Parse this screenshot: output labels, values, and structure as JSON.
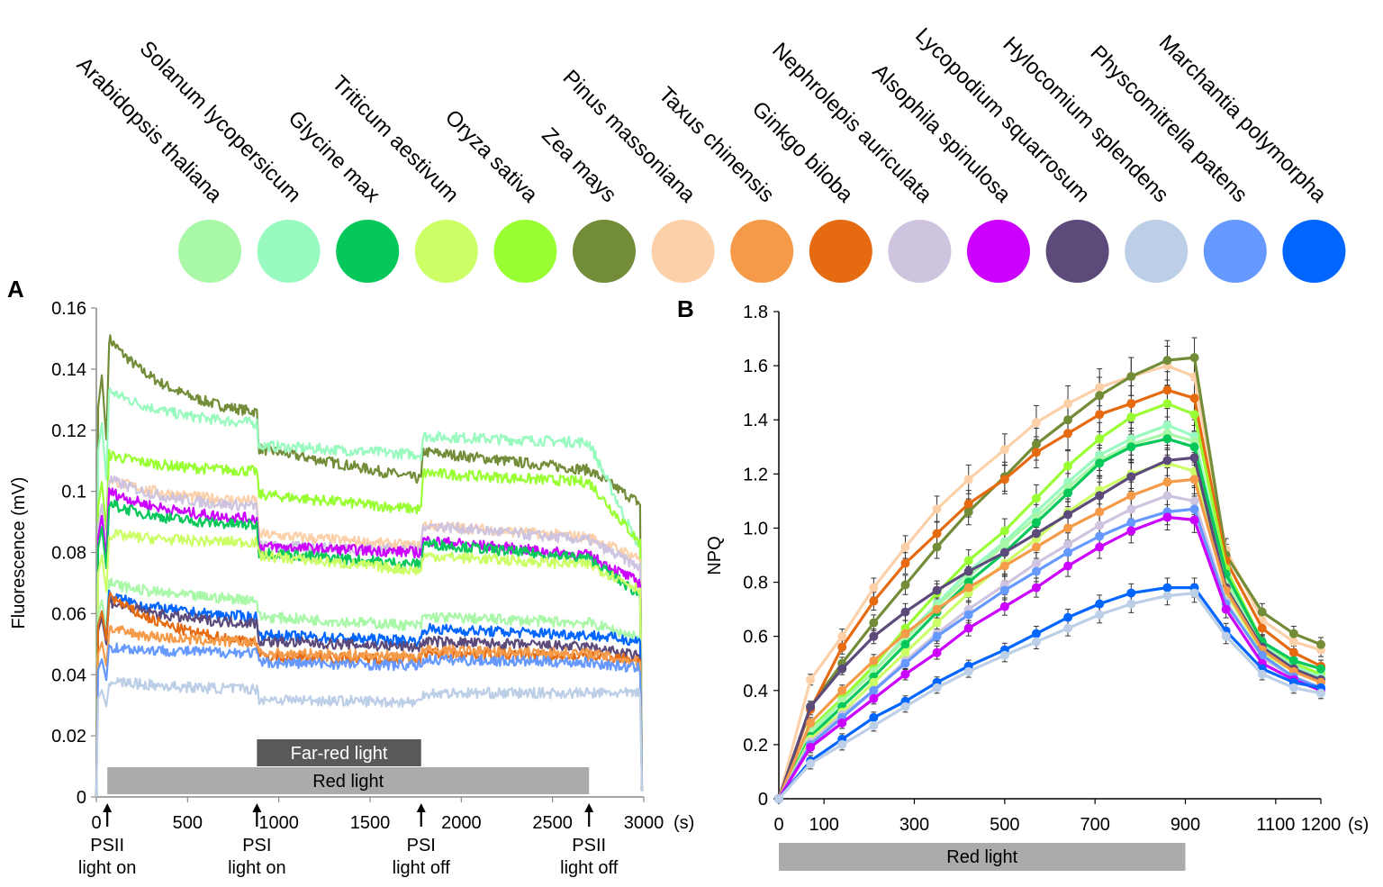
{
  "legend": {
    "species": [
      {
        "name": "Arabidopsis thaliana",
        "color": "#A8F8A8"
      },
      {
        "name": "Solanum lycopersicum",
        "color": "#98FABE"
      },
      {
        "name": "Glycine max",
        "color": "#06C759"
      },
      {
        "name": "Triticum aestivum",
        "color": "#CCFF66"
      },
      {
        "name": "Oryza sativa",
        "color": "#99FF33"
      },
      {
        "name": "Zea mays",
        "color": "#728C38"
      },
      {
        "name": "Pinus massoniana",
        "color": "#FCD0A8"
      },
      {
        "name": "Taxus chinensis",
        "color": "#F49A48"
      },
      {
        "name": "Ginkgo biloba",
        "color": "#E56A10"
      },
      {
        "name": "Nephrolepis auriculata",
        "color": "#CFC4DF"
      },
      {
        "name": "Alsophila spinulosa",
        "color": "#CC00FF"
      },
      {
        "name": "Lycopodium squarrosum",
        "color": "#5C4A7A"
      },
      {
        "name": "Hylocomium splendens",
        "color": "#BCCFE7"
      },
      {
        "name": "Physcomitrella patens",
        "color": "#6699FF"
      },
      {
        "name": "Marchantia polymorpha",
        "color": "#0066FF"
      }
    ]
  },
  "chart_data": [
    {
      "panel": "A",
      "type": "line",
      "ylabel": "Fluorescence (mV)",
      "xunit": "(s)",
      "ylim": [
        0,
        0.16
      ],
      "xlim": [
        0,
        3000
      ],
      "y_ticks": [
        "0",
        "0.02",
        "0.04",
        "0.06",
        "0.08",
        "0.1",
        "0.12",
        "0.14",
        "0.16"
      ],
      "y_tick_values": [
        0,
        0.02,
        0.04,
        0.06,
        0.08,
        0.1,
        0.12,
        0.14,
        0.16
      ],
      "x_ticks": [
        "0",
        "500",
        "1000",
        "1500",
        "2000",
        "2500",
        "3000"
      ],
      "x_tick_values": [
        0,
        500,
        1000,
        1500,
        2000,
        2500,
        3000
      ],
      "events": [
        {
          "t": 60,
          "label1": "PSII",
          "label2": "light on"
        },
        {
          "t": 880,
          "label1": "PSI",
          "label2": "light on"
        },
        {
          "t": 1780,
          "label1": "PSI",
          "label2": "light off"
        },
        {
          "t": 2700,
          "label1": "PSII",
          "label2": "light off"
        }
      ],
      "bars": [
        {
          "label": "Far-red light",
          "start": 880,
          "end": 1780,
          "row": 1,
          "color": "#595959",
          "text_color": "#ffffff"
        },
        {
          "label": "Red light",
          "start": 60,
          "end": 2700,
          "row": 2,
          "color": "#ABABAB",
          "text_color": "#000000"
        }
      ],
      "series": [
        {
          "name": "Zea mays",
          "peak": 0.15,
          "values": [
            0.15,
            0.123,
            0.114,
            0.104,
            0.113,
            0.107,
            0.096
          ]
        },
        {
          "name": "Solanum lycopersicum",
          "peak": 0.133,
          "values": [
            0.133,
            0.121,
            0.115,
            0.112,
            0.118,
            0.116,
            0.081
          ]
        },
        {
          "name": "Oryza sativa",
          "peak": 0.112,
          "values": [
            0.112,
            0.106,
            0.099,
            0.094,
            0.106,
            0.103,
            0.083
          ]
        },
        {
          "name": "Pinus massoniana",
          "peak": 0.104,
          "values": [
            0.104,
            0.096,
            0.086,
            0.082,
            0.089,
            0.085,
            0.078
          ]
        },
        {
          "name": "Nephrolepis auriculata",
          "peak": 0.104,
          "values": [
            0.104,
            0.094,
            0.082,
            0.081,
            0.089,
            0.084,
            0.075
          ]
        },
        {
          "name": "Alsophila spinulosa",
          "peak": 0.1,
          "values": [
            0.1,
            0.09,
            0.082,
            0.08,
            0.084,
            0.079,
            0.07
          ]
        },
        {
          "name": "Glycine max",
          "peak": 0.096,
          "values": [
            0.096,
            0.088,
            0.08,
            0.076,
            0.083,
            0.078,
            0.066
          ]
        },
        {
          "name": "Triticum aestivum",
          "peak": 0.086,
          "values": [
            0.086,
            0.083,
            0.079,
            0.074,
            0.079,
            0.076,
            0.068
          ]
        },
        {
          "name": "Arabidopsis thaliana",
          "peak": 0.07,
          "values": [
            0.07,
            0.064,
            0.059,
            0.056,
            0.059,
            0.057,
            0.052
          ]
        },
        {
          "name": "Marchantia polymorpha",
          "peak": 0.066,
          "values": [
            0.066,
            0.058,
            0.053,
            0.051,
            0.055,
            0.053,
            0.051
          ]
        },
        {
          "name": "Lycopodium squarrosum",
          "peak": 0.064,
          "values": [
            0.064,
            0.056,
            0.051,
            0.049,
            0.051,
            0.049,
            0.046
          ]
        },
        {
          "name": "Ginkgo biloba",
          "peak": 0.066,
          "values": [
            0.066,
            0.049,
            0.046,
            0.045,
            0.047,
            0.046,
            0.045
          ]
        },
        {
          "name": "Taxus chinensis",
          "peak": 0.055,
          "values": [
            0.055,
            0.05,
            0.047,
            0.046,
            0.048,
            0.047,
            0.044
          ]
        },
        {
          "name": "Physcomitrella patens",
          "peak": 0.049,
          "values": [
            0.049,
            0.047,
            0.044,
            0.043,
            0.045,
            0.044,
            0.042
          ]
        },
        {
          "name": "Hylocomium splendens",
          "peak": 0.038,
          "values": [
            0.038,
            0.035,
            0.032,
            0.031,
            0.034,
            0.034,
            0.034
          ]
        }
      ],
      "series_time_points": [
        70,
        880,
        890,
        1780,
        1790,
        2700,
        2980
      ]
    },
    {
      "panel": "B",
      "type": "line",
      "ylabel": "NPQ",
      "xunit": "(s)",
      "ylim": [
        0,
        1.8
      ],
      "xlim": [
        0,
        1200
      ],
      "y_ticks": [
        "0",
        "0.2",
        "0.4",
        "0.6",
        "0.8",
        "1.0",
        "1.2",
        "1.4",
        "1.6",
        "1.8"
      ],
      "y_tick_values": [
        0,
        0.2,
        0.4,
        0.6,
        0.8,
        1.0,
        1.2,
        1.4,
        1.6,
        1.8
      ],
      "x_ticks": [
        "0",
        "100",
        "300",
        "500",
        "700",
        "900",
        "1100",
        "1200"
      ],
      "x_tick_values": [
        0,
        100,
        300,
        500,
        700,
        900,
        1100,
        1200
      ],
      "bar": {
        "label": "Red light",
        "start": 0,
        "end": 900,
        "color": "#ABABAB"
      },
      "x": [
        0,
        70,
        140,
        210,
        280,
        350,
        420,
        500,
        570,
        640,
        710,
        780,
        860,
        920,
        990,
        1070,
        1140,
        1200
      ],
      "series": [
        {
          "name": "Pinus massoniana",
          "values": [
            0,
            0.44,
            0.6,
            0.78,
            0.93,
            1.07,
            1.18,
            1.29,
            1.39,
            1.46,
            1.52,
            1.56,
            1.6,
            1.56,
            0.92,
            0.66,
            0.58,
            0.55
          ]
        },
        {
          "name": "Zea mays",
          "values": [
            0,
            0.34,
            0.5,
            0.65,
            0.79,
            0.93,
            1.06,
            1.19,
            1.31,
            1.4,
            1.49,
            1.56,
            1.62,
            1.63,
            0.9,
            0.69,
            0.61,
            0.57
          ]
        },
        {
          "name": "Ginkgo biloba",
          "values": [
            0,
            0.33,
            0.56,
            0.73,
            0.87,
            0.98,
            1.09,
            1.18,
            1.28,
            1.35,
            1.42,
            1.46,
            1.51,
            1.48,
            0.88,
            0.63,
            0.54,
            0.49
          ]
        },
        {
          "name": "Oryza sativa",
          "values": [
            0,
            0.26,
            0.37,
            0.49,
            0.63,
            0.76,
            0.88,
            0.99,
            1.11,
            1.23,
            1.33,
            1.41,
            1.46,
            1.42,
            0.85,
            0.58,
            0.5,
            0.46
          ]
        },
        {
          "name": "Solanum lycopersicum",
          "values": [
            0,
            0.24,
            0.36,
            0.47,
            0.6,
            0.72,
            0.84,
            0.95,
            1.06,
            1.17,
            1.27,
            1.33,
            1.38,
            1.34,
            0.82,
            0.57,
            0.49,
            0.45
          ]
        },
        {
          "name": "Arabidopsis thaliana",
          "values": [
            0,
            0.25,
            0.36,
            0.47,
            0.59,
            0.71,
            0.82,
            0.94,
            1.04,
            1.15,
            1.25,
            1.31,
            1.35,
            1.32,
            0.8,
            0.56,
            0.48,
            0.44
          ]
        },
        {
          "name": "Glycine max",
          "values": [
            0,
            0.23,
            0.34,
            0.45,
            0.57,
            0.69,
            0.8,
            0.91,
            1.02,
            1.13,
            1.24,
            1.3,
            1.33,
            1.3,
            0.83,
            0.58,
            0.51,
            0.48
          ]
        },
        {
          "name": "Triticum aestivum",
          "values": [
            0,
            0.22,
            0.32,
            0.43,
            0.54,
            0.65,
            0.76,
            0.87,
            0.96,
            1.06,
            1.14,
            1.2,
            1.24,
            1.21,
            0.76,
            0.54,
            0.47,
            0.43
          ]
        },
        {
          "name": "Lycopodium squarrosum",
          "values": [
            0,
            0.34,
            0.48,
            0.6,
            0.69,
            0.77,
            0.84,
            0.91,
            0.98,
            1.05,
            1.12,
            1.19,
            1.25,
            1.26,
            0.78,
            0.56,
            0.48,
            0.44
          ]
        },
        {
          "name": "Taxus chinensis",
          "values": [
            0,
            0.28,
            0.4,
            0.51,
            0.61,
            0.7,
            0.78,
            0.86,
            0.93,
            1.0,
            1.06,
            1.12,
            1.17,
            1.18,
            0.77,
            0.55,
            0.47,
            0.43
          ]
        },
        {
          "name": "Nephrolepis auriculata",
          "values": [
            0,
            0.21,
            0.31,
            0.4,
            0.51,
            0.61,
            0.7,
            0.79,
            0.87,
            0.94,
            1.01,
            1.07,
            1.12,
            1.1,
            0.73,
            0.52,
            0.45,
            0.41
          ]
        },
        {
          "name": "Physcomitrella patens",
          "values": [
            0,
            0.2,
            0.3,
            0.4,
            0.5,
            0.6,
            0.68,
            0.77,
            0.84,
            0.91,
            0.97,
            1.02,
            1.06,
            1.07,
            0.72,
            0.53,
            0.45,
            0.41
          ]
        },
        {
          "name": "Alsophila spinulosa",
          "values": [
            0,
            0.19,
            0.28,
            0.37,
            0.46,
            0.54,
            0.63,
            0.71,
            0.78,
            0.86,
            0.93,
            0.99,
            1.04,
            1.03,
            0.7,
            0.5,
            0.44,
            0.4
          ]
        },
        {
          "name": "Marchantia polymorpha",
          "values": [
            0,
            0.14,
            0.22,
            0.3,
            0.36,
            0.43,
            0.49,
            0.55,
            0.61,
            0.67,
            0.72,
            0.76,
            0.78,
            0.78,
            0.62,
            0.48,
            0.43,
            0.41
          ]
        },
        {
          "name": "Hylocomium splendens",
          "values": [
            0,
            0.13,
            0.2,
            0.27,
            0.34,
            0.41,
            0.47,
            0.53,
            0.58,
            0.63,
            0.68,
            0.72,
            0.75,
            0.76,
            0.6,
            0.46,
            0.41,
            0.39
          ]
        }
      ]
    }
  ],
  "panel_letters": {
    "a": "A",
    "b": "B"
  }
}
